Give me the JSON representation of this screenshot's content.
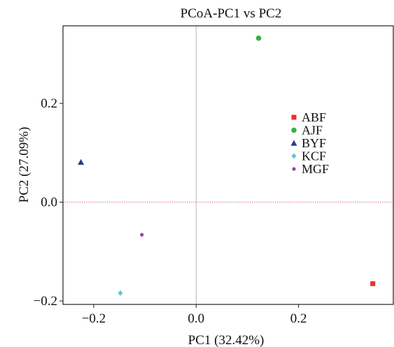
{
  "chart_data": {
    "type": "scatter",
    "title": "PCoA-PC1 vs PC2",
    "xlabel": "PC1 (32.42%)",
    "ylabel": "PC2 (27.09%)",
    "xlim": [
      -0.26,
      0.385
    ],
    "ylim": [
      -0.207,
      0.357
    ],
    "xticks": [
      {
        "value": -0.2,
        "label": "−0.2"
      },
      {
        "value": 0.0,
        "label": "0.0"
      },
      {
        "value": 0.2,
        "label": "0.2"
      }
    ],
    "yticks": [
      {
        "value": -0.2,
        "label": "−0.2"
      },
      {
        "value": 0.0,
        "label": "0.0"
      },
      {
        "value": 0.2,
        "label": "0.2"
      }
    ],
    "reference_lines": {
      "x": 0.0,
      "y": 0.0
    },
    "grid": false,
    "legend_position": "upper-right",
    "series": [
      {
        "name": "ABF",
        "marker": "square",
        "color": "#e8302a",
        "x": [
          0.345
        ],
        "y": [
          -0.165
        ]
      },
      {
        "name": "AJF",
        "marker": "circle",
        "color": "#3cb043",
        "x": [
          0.122
        ],
        "y": [
          0.332
        ]
      },
      {
        "name": "BYF",
        "marker": "triangle",
        "color": "#2b3990",
        "x": [
          -0.225
        ],
        "y": [
          0.081
        ]
      },
      {
        "name": "KCF",
        "marker": "diamond",
        "color": "#5bc8d0",
        "x": [
          -0.148
        ],
        "y": [
          -0.184
        ]
      },
      {
        "name": "MGF",
        "marker": "circle-small",
        "color": "#a23fa8",
        "x": [
          -0.106
        ],
        "y": [
          -0.066
        ]
      }
    ]
  }
}
